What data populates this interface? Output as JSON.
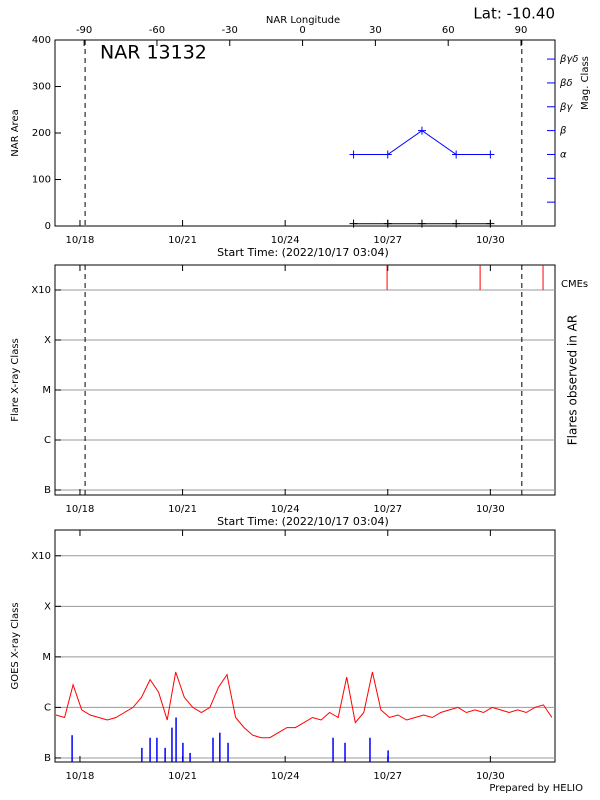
{
  "chart_data": [
    {
      "type": "line",
      "title": "NAR 13132",
      "annotation": "Lat: -10.40",
      "x2label": "NAR Longitude",
      "xlabel": "Start Time: (2022/10/17 03:04)",
      "ylabel": "NAR Area",
      "y2label": "Mag. Class",
      "y2color": "#0000ff",
      "xlim": [
        0.27,
        14.89
      ],
      "xticks": [
        {
          "value": 1,
          "label": "10/18"
        },
        {
          "value": 4,
          "label": "10/21"
        },
        {
          "value": 7,
          "label": "10/24"
        },
        {
          "value": 10,
          "label": "10/27"
        },
        {
          "value": 13,
          "label": "10/30"
        }
      ],
      "x2lim": [
        -102,
        104
      ],
      "x2ticks": [
        -90,
        -60,
        -30,
        0,
        30,
        60,
        90
      ],
      "ylim": [
        0,
        400
      ],
      "yticks": [
        0,
        100,
        200,
        300,
        400
      ],
      "y2lim": [
        0,
        7.8
      ],
      "y2ticks": [
        {
          "value": 3,
          "label": "α"
        },
        {
          "value": 4,
          "label": "β"
        },
        {
          "value": 5,
          "label": "βγ"
        },
        {
          "value": 6,
          "label": "βδ"
        },
        {
          "value": 7,
          "label": "βγδ"
        }
      ],
      "y2_minor_ticks": [
        1,
        2
      ],
      "vlines": [
        1.15,
        13.92
      ],
      "x": [
        9,
        10,
        11,
        12,
        13
      ],
      "series": [
        {
          "color": "#000000",
          "marker": "+",
          "values": [
            5,
            5,
            5,
            5,
            5
          ]
        },
        {
          "color": "#0000ff",
          "marker": "+",
          "axis": "y2",
          "values": [
            3,
            3,
            4,
            3,
            3
          ]
        }
      ]
    },
    {
      "type": "event",
      "xlabel": "Start Time: (2022/10/17 03:04)",
      "ylabel": "Flare X-ray Class",
      "y2label": "Flares observed in AR",
      "xlim": [
        0.27,
        14.89
      ],
      "xticks": [
        {
          "value": 1,
          "label": "10/18"
        },
        {
          "value": 4,
          "label": "10/21"
        },
        {
          "value": 7,
          "label": "10/24"
        },
        {
          "value": 10,
          "label": "10/27"
        },
        {
          "value": 13,
          "label": "10/30"
        }
      ],
      "ylim": [
        -7.1,
        -2.5
      ],
      "yticks": [
        {
          "value": -7,
          "label": "B"
        },
        {
          "value": -6,
          "label": "C"
        },
        {
          "value": -5,
          "label": "M"
        },
        {
          "value": -4,
          "label": "X"
        },
        {
          "value": -3,
          "label": "X10"
        }
      ],
      "grid": true,
      "vlines": [
        1.15,
        13.92
      ],
      "cmes": {
        "name": "CMEs",
        "color": "#ff0000",
        "x": [
          9.98,
          12.7,
          14.54
        ]
      }
    },
    {
      "type": "line",
      "ylabel": "GOES X-ray Class",
      "footer": "Prepared by HELIO",
      "xlim": [
        0.27,
        14.89
      ],
      "xticks": [
        {
          "value": 1,
          "label": "10/18"
        },
        {
          "value": 4,
          "label": "10/21"
        },
        {
          "value": 7,
          "label": "10/24"
        },
        {
          "value": 10,
          "label": "10/27"
        },
        {
          "value": 13,
          "label": "10/30"
        }
      ],
      "ylim": [
        -7.08,
        -2.49
      ],
      "yticks": [
        {
          "value": -7,
          "label": "B"
        },
        {
          "value": -6,
          "label": "C"
        },
        {
          "value": -5,
          "label": "M"
        },
        {
          "value": -4,
          "label": "X"
        },
        {
          "value": -3,
          "label": "X10"
        }
      ],
      "grid": true,
      "x": [
        0.3,
        0.55,
        0.8,
        1.05,
        1.3,
        1.55,
        1.8,
        2.05,
        2.3,
        2.55,
        2.8,
        3.05,
        3.3,
        3.55,
        3.8,
        4.05,
        4.3,
        4.55,
        4.8,
        5.05,
        5.3,
        5.55,
        5.8,
        6.05,
        6.3,
        6.55,
        6.8,
        7.05,
        7.3,
        7.55,
        7.8,
        8.05,
        8.3,
        8.55,
        8.8,
        9.05,
        9.3,
        9.55,
        9.8,
        10.05,
        10.3,
        10.55,
        10.8,
        11.05,
        11.3,
        11.55,
        11.8,
        12.05,
        12.3,
        12.55,
        12.8,
        13.05,
        13.3,
        13.55,
        13.8,
        14.05,
        14.3,
        14.55,
        14.8
      ],
      "series": [
        {
          "color": "#ff0000",
          "values": [
            -6.15,
            -6.2,
            -5.55,
            -6.05,
            -6.15,
            -6.2,
            -6.25,
            -6.2,
            -6.1,
            -6.0,
            -5.8,
            -5.45,
            -5.7,
            -6.25,
            -5.3,
            -5.8,
            -6.0,
            -6.1,
            -6.0,
            -5.6,
            -5.35,
            -6.2,
            -6.4,
            -6.55,
            -6.6,
            -6.6,
            -6.5,
            -6.4,
            -6.4,
            -6.3,
            -6.2,
            -6.25,
            -6.1,
            -6.2,
            -5.4,
            -6.3,
            -6.1,
            -5.3,
            -6.05,
            -6.2,
            -6.15,
            -6.25,
            -6.2,
            -6.15,
            -6.2,
            -6.1,
            -6.05,
            -6.0,
            -6.1,
            -6.05,
            -6.1,
            -6.0,
            -6.05,
            -6.1,
            -6.05,
            -6.1,
            -6.0,
            -5.95,
            -6.2
          ]
        }
      ],
      "bars": {
        "color": "#0000ff",
        "x": [
          0.77,
          2.81,
          3.05,
          3.25,
          3.49,
          3.69,
          3.81,
          4.01,
          4.22,
          4.89,
          5.09,
          5.33,
          8.4,
          8.75,
          9.48,
          10.01
        ],
        "values": [
          -6.55,
          -6.8,
          -6.6,
          -6.6,
          -6.8,
          -6.4,
          -6.2,
          -6.7,
          -6.9,
          -6.6,
          -6.5,
          -6.7,
          -6.6,
          -6.7,
          -6.6,
          -6.85
        ]
      }
    }
  ]
}
